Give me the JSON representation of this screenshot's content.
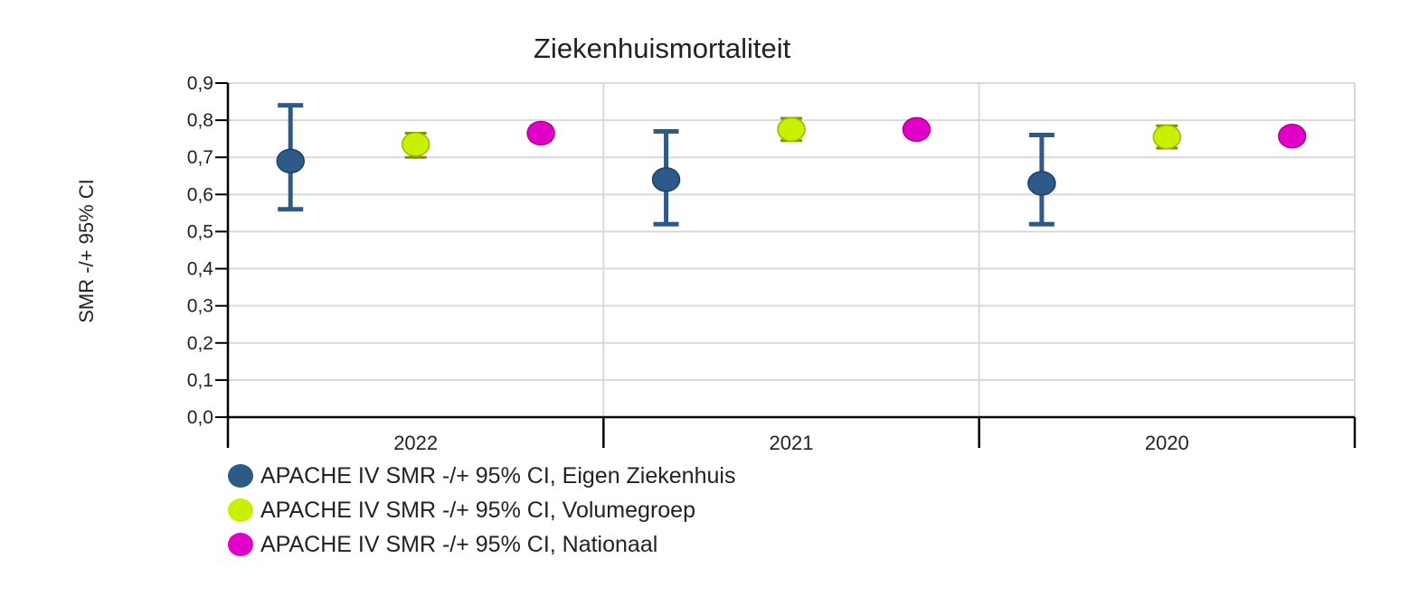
{
  "chart_data": {
    "type": "scatter",
    "title": "Ziekenhuismortaliteit",
    "xlabel": "",
    "ylabel": "SMR -/+ 95% CI",
    "categories": [
      "2022",
      "2021",
      "2020"
    ],
    "ylim": [
      0,
      0.9
    ],
    "yticks": [
      "0,0",
      "0,1",
      "0,2",
      "0,3",
      "0,4",
      "0,5",
      "0,6",
      "0,7",
      "0,8",
      "0,9"
    ],
    "grid": true,
    "legend_position": "bottom-left",
    "series": [
      {
        "name": "APACHE IV SMR -/+ 95% CI, Eigen Ziekenhuis",
        "color": "#2e5a88",
        "values": [
          0.69,
          0.64,
          0.63
        ],
        "lower": [
          0.56,
          0.52,
          0.52
        ],
        "upper": [
          0.84,
          0.77,
          0.76
        ]
      },
      {
        "name": "APACHE IV SMR -/+ 95% CI, Volumegroep",
        "color": "#c8f000",
        "values": [
          0.735,
          0.775,
          0.755
        ],
        "lower": [
          0.7,
          0.745,
          0.725
        ],
        "upper": [
          0.765,
          0.805,
          0.785
        ]
      },
      {
        "name": "APACHE IV SMR -/+ 95% CI, Nationaal",
        "color": "#e000c8",
        "values": [
          0.765,
          0.775,
          0.757
        ],
        "lower": [
          0.745,
          0.76,
          0.745
        ],
        "upper": [
          0.785,
          0.79,
          0.77
        ]
      }
    ]
  }
}
